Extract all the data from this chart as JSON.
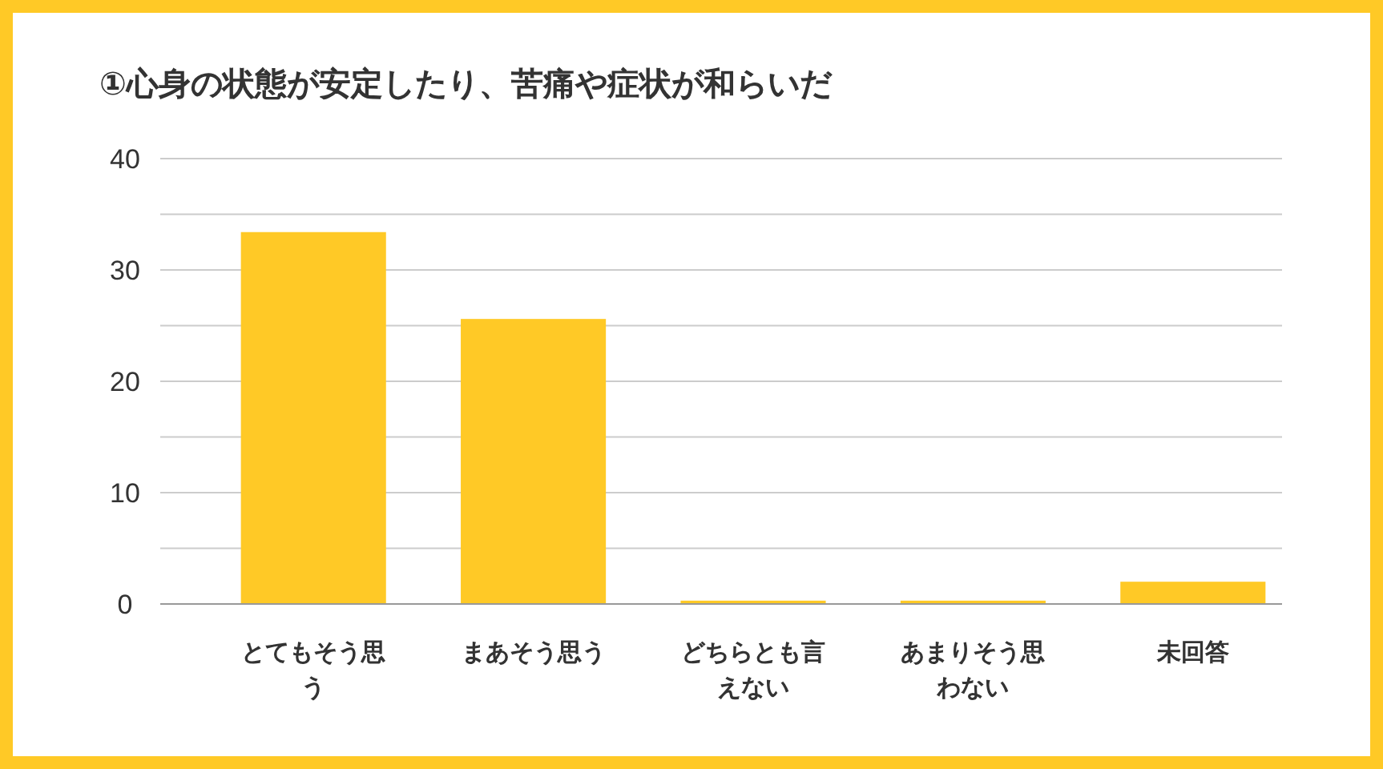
{
  "chart_data": {
    "type": "bar",
    "title": "①心身の状態が安定したり、苦痛や症状が和らいだ",
    "categories": [
      "とてもそう思う",
      "まあそう思う",
      "どちらとも言えない",
      "あまりそう思わない",
      "未回答"
    ],
    "values": [
      33.4,
      25.6,
      0.3,
      0.3,
      2.0
    ],
    "color": "#ffc926",
    "ylim": [
      0,
      40
    ],
    "yticks": [
      0,
      {
        "value": 5,
        "label": null
      },
      10,
      {
        "value": 15,
        "label": null
      },
      20,
      {
        "value": 25,
        "label": null
      },
      30,
      {
        "value": 35,
        "label": null
      },
      40
    ],
    "grid": "y"
  }
}
